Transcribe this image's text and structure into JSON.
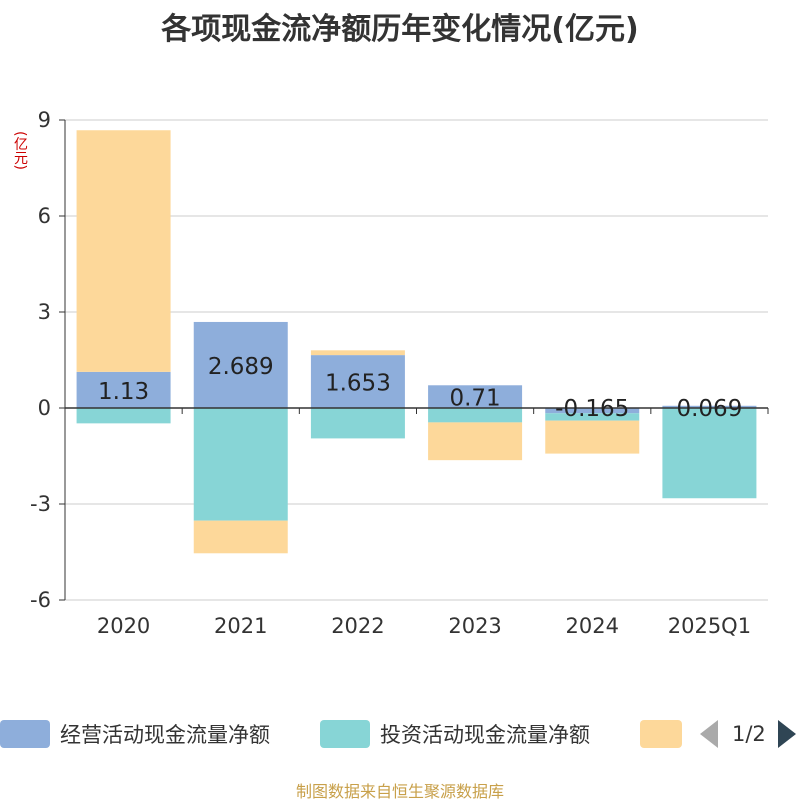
{
  "chart_data": {
    "type": "bar",
    "stacked": true,
    "title": "各项现金流净额历年变化情况(亿元)",
    "ylabel": "(亿元)",
    "categories": [
      "2020",
      "2021",
      "2022",
      "2023",
      "2024",
      "2025Q1"
    ],
    "ylim": [
      -6,
      9
    ],
    "yticks": [
      9,
      6,
      3,
      0,
      -3,
      -6
    ],
    "series": [
      {
        "name": "经营活动现金流量净额",
        "color": "#8eaedb",
        "values": [
          1.13,
          2.689,
          1.653,
          0.71,
          -0.165,
          0.069
        ]
      },
      {
        "name": "投资活动现金流量净额",
        "color": "#87d5d6",
        "values": [
          -0.48,
          -3.52,
          -0.95,
          -0.45,
          -0.23,
          -2.82
        ]
      },
      {
        "name": "",
        "color": "#fdd89a",
        "values": [
          7.55,
          -1.02,
          0.15,
          -1.18,
          -1.03,
          0
        ]
      }
    ],
    "data_labels": [
      "1.13",
      "2.689",
      "1.653",
      "0.71",
      "-0.165",
      "0.069"
    ]
  },
  "legend": {
    "items": [
      {
        "label": "经营活动现金流量净额",
        "color": "#8eaedb"
      },
      {
        "label": "投资活动现金流量净额",
        "color": "#87d5d6"
      },
      {
        "label": "",
        "color": "#fdd89a"
      }
    ],
    "page": "1/2"
  },
  "source": "制图数据来自恒生聚源数据库"
}
